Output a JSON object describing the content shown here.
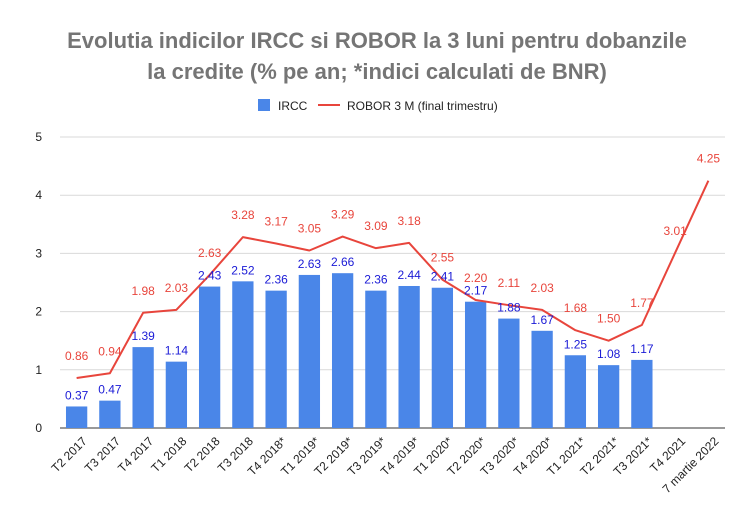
{
  "chart_data": {
    "type": "bar",
    "title_line1": "Evolutia indicilor IRCC si ROBOR la 3 luni pentru dobanzile",
    "title_line2": "la credite (% pe an; *indici calculati de BNR)",
    "legend": {
      "position": "top",
      "bar_label": "IRCC",
      "line_label": "ROBOR 3 M (final trimestru)"
    },
    "colors": {
      "bar": "#4a86e8",
      "line": "#e8453c",
      "bar_label": "#1a1ad6",
      "line_label": "#e8453c",
      "grid": "#d9d9d9",
      "title": "#757575"
    },
    "ylim": [
      0,
      5
    ],
    "yticks": [
      "0",
      "1",
      "2",
      "3",
      "4",
      "5"
    ],
    "grid": true,
    "categories": [
      "T2 2017",
      "T3 2017",
      "T4 2017",
      "T1 2018",
      "T2 2018",
      "T3 2018",
      "T4 2018*",
      "T1 2019*",
      "T2 2019*",
      "T3 2019*",
      "T4 2019*",
      "T1 2020*",
      "T2 2020*",
      "T3 2020*",
      "T4 2020*",
      "T1 2021*",
      "T2 2021*",
      "T3 2021*",
      "T4 2021",
      "7 martie 2022"
    ],
    "series": [
      {
        "name": "IRCC",
        "kind": "bar",
        "values": [
          0.37,
          0.47,
          1.39,
          1.14,
          2.43,
          2.52,
          2.36,
          2.63,
          2.66,
          2.36,
          2.44,
          2.41,
          2.17,
          1.88,
          1.67,
          1.25,
          1.08,
          1.17,
          null,
          null
        ],
        "labels": [
          "0.37",
          "0.47",
          "1.39",
          "1.14",
          "2.43",
          "2.52",
          "2.36",
          "2.63",
          "2.66",
          "2.36",
          "2.44",
          "2.41",
          "2.17",
          "1.88",
          "1.67",
          "1.25",
          "1.08",
          "1.17",
          "",
          ""
        ]
      },
      {
        "name": "ROBOR 3 M (final trimestru)",
        "kind": "line",
        "values": [
          0.86,
          0.94,
          1.98,
          2.03,
          2.63,
          3.28,
          3.17,
          3.05,
          3.29,
          3.09,
          3.18,
          2.55,
          2.2,
          2.11,
          2.03,
          1.68,
          1.5,
          1.77,
          3.01,
          4.25
        ],
        "labels": [
          "0.86",
          "0.94",
          "1.98",
          "2.03",
          "2.63",
          "3.28",
          "3.17",
          "3.05",
          "3.29",
          "3.09",
          "3.18",
          "2.55",
          "2.20",
          "2.11",
          "2.03",
          "1.68",
          "1.50",
          "1.77",
          "3.01",
          "4.25"
        ]
      }
    ]
  }
}
